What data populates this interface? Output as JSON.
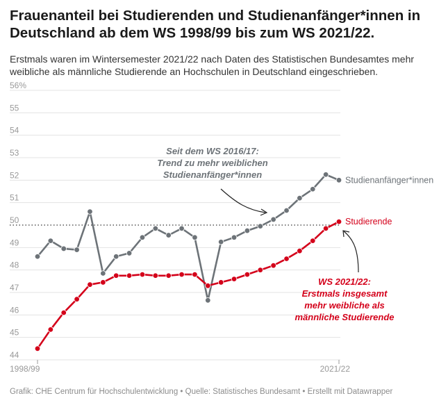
{
  "title": "Frauenanteil bei Studierenden und Studienanfänger*innen in Deutschland ab dem WS 1998/99 bis zum WS 2021/22.",
  "subtitle": "Erstmals waren im Wintersemester 2021/22 nach Daten des Statistischen Bundesamtes mehr weibliche als männliche Studierende an Hochschulen in Deutschland eingeschrieben.",
  "footer": {
    "text": "Grafik: CHE Centrum für Hochschulentwicklung • Quelle: Statistisches Bundesamt • Erstellt mit Datawrapper"
  },
  "colors": {
    "anfaenger": "#6d7378",
    "studierende": "#d4001a",
    "grid": "#e3e3e3",
    "reference": "#555555"
  },
  "chart_data": {
    "type": "line",
    "x_labels": [
      "1998/99",
      "2021/22"
    ],
    "y_ticks": [
      "44",
      "45",
      "46",
      "47",
      "48",
      "49",
      "50",
      "51",
      "52",
      "53",
      "54",
      "55",
      "56%"
    ],
    "ylim": [
      44,
      56
    ],
    "reference_line": 50,
    "grid": true,
    "series": [
      {
        "name": "Studienanfänger*innen",
        "key": "anfaenger",
        "values": [
          48.6,
          49.3,
          48.95,
          48.9,
          50.6,
          47.85,
          48.6,
          48.75,
          49.45,
          49.85,
          49.55,
          49.85,
          49.45,
          46.65,
          49.25,
          49.45,
          49.75,
          49.95,
          50.25,
          50.65,
          51.2,
          51.6,
          52.25,
          52.0
        ]
      },
      {
        "name": "Studierende",
        "key": "studierende",
        "values": [
          44.5,
          45.35,
          46.1,
          46.7,
          47.35,
          47.45,
          47.75,
          47.75,
          47.8,
          47.75,
          47.75,
          47.8,
          47.8,
          47.3,
          47.45,
          47.6,
          47.8,
          48.0,
          48.2,
          48.5,
          48.85,
          49.3,
          49.85,
          50.15
        ]
      }
    ],
    "annotations": [
      {
        "key": "trend",
        "lines": [
          "Seit dem WS 2016/17:",
          "Trend zu mehr weiblichen",
          "Studienanfänger*innen"
        ]
      },
      {
        "key": "first",
        "lines": [
          "WS 2021/22:",
          "Erstmals insgesamt",
          "mehr weibliche als",
          "männliche Studierende"
        ]
      }
    ]
  }
}
